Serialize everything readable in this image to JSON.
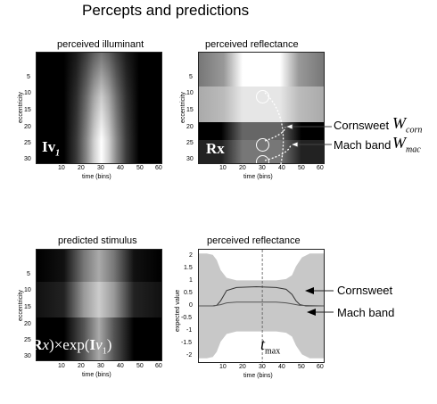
{
  "figure": {
    "title": "Percepts and predictions"
  },
  "panels": [
    {
      "id": "perceived-illuminant",
      "title": "perceived illuminant",
      "ylabel": "eccentricity",
      "xlabel": "time (bins)",
      "symbol_main": "Iv",
      "symbol_sub": "1",
      "xticks": [
        "10",
        "20",
        "30",
        "40",
        "50",
        "60"
      ],
      "yticks": [
        "5",
        "10",
        "15",
        "20",
        "25",
        "30"
      ]
    },
    {
      "id": "perceived-reflectance-image",
      "title": "perceived reflectance",
      "ylabel": "eccentricity",
      "xlabel": "time (bins)",
      "symbol_main": "Rx",
      "xticks": [
        "10",
        "20",
        "30",
        "40",
        "50",
        "60"
      ],
      "yticks": [
        "5",
        "10",
        "15",
        "20",
        "25",
        "30"
      ]
    },
    {
      "id": "predicted-stimulus",
      "title": "predicted stimulus",
      "ylabel": "eccentricity",
      "xlabel": "time (bins)",
      "formula_exp1": "exp(",
      "formula_R": "R",
      "formula_x": "x",
      "formula_close_times": ")×exp(",
      "formula_I": "I",
      "formula_v": "v",
      "formula_sub": "1",
      "formula_close": ")",
      "xticks": [
        "10",
        "20",
        "30",
        "40",
        "50",
        "60"
      ],
      "yticks": [
        "5",
        "10",
        "15",
        "20",
        "25",
        "30"
      ]
    },
    {
      "id": "perceived-reflectance-plot",
      "title": "perceived reflectance",
      "ylabel": "expected value",
      "xlabel": "time (bins)",
      "tmax_main": "t",
      "tmax_sub": "max",
      "xticks": [
        "10",
        "20",
        "30",
        "40",
        "50",
        "60"
      ],
      "yticks": [
        "2",
        "1.5",
        "1",
        "0.5",
        "0",
        "-0.5",
        "-1",
        "-1.5",
        "-2"
      ]
    }
  ],
  "annotations": {
    "cornsweet_label": "Cornsweet",
    "cornsweet_symbol": "W",
    "cornsweet_sub": "corn",
    "machband_label": "Mach band",
    "machband_symbol": "W",
    "machband_sub": "mac",
    "cornsweet_label_lower": "Cornsweet",
    "machband_label_lower": "Mach band"
  },
  "chart_data": {
    "type": "area",
    "xlim": [
      1,
      64
    ],
    "ylim": [
      -2.2,
      2.2
    ],
    "vline_x": 33,
    "x": [
      1,
      5,
      8,
      10,
      12,
      15,
      20,
      25,
      30,
      33,
      35,
      40,
      45,
      48,
      50,
      53,
      57,
      60,
      64
    ],
    "band_upper": [
      2.05,
      2.05,
      2.0,
      1.8,
      1.4,
      1.1,
      1.0,
      1.0,
      1.0,
      1.0,
      1.0,
      1.0,
      1.05,
      1.2,
      1.55,
      1.9,
      2.05,
      2.05,
      2.05
    ],
    "band_lower": [
      -2.05,
      -2.05,
      -2.0,
      -1.8,
      -1.4,
      -1.1,
      -1.0,
      -1.0,
      -1.0,
      -1.0,
      -1.0,
      -1.0,
      -1.05,
      -1.2,
      -1.55,
      -1.9,
      -2.05,
      -2.05,
      -2.05
    ],
    "series": [
      {
        "name": "Cornsweet",
        "x": [
          1,
          8,
          10,
          12,
          15,
          20,
          30,
          40,
          45,
          48,
          50,
          52,
          55,
          64
        ],
        "values": [
          0,
          0,
          0.02,
          0.2,
          0.6,
          0.72,
          0.75,
          0.72,
          0.65,
          0.45,
          0.2,
          0.05,
          0,
          0
        ]
      },
      {
        "name": "Mach band",
        "x": [
          1,
          8,
          12,
          15,
          20,
          30,
          40,
          45,
          48,
          52,
          64
        ],
        "values": [
          0,
          0,
          0.05,
          0.12,
          0.15,
          0.15,
          0.15,
          0.12,
          0.08,
          0.02,
          0
        ]
      }
    ]
  }
}
